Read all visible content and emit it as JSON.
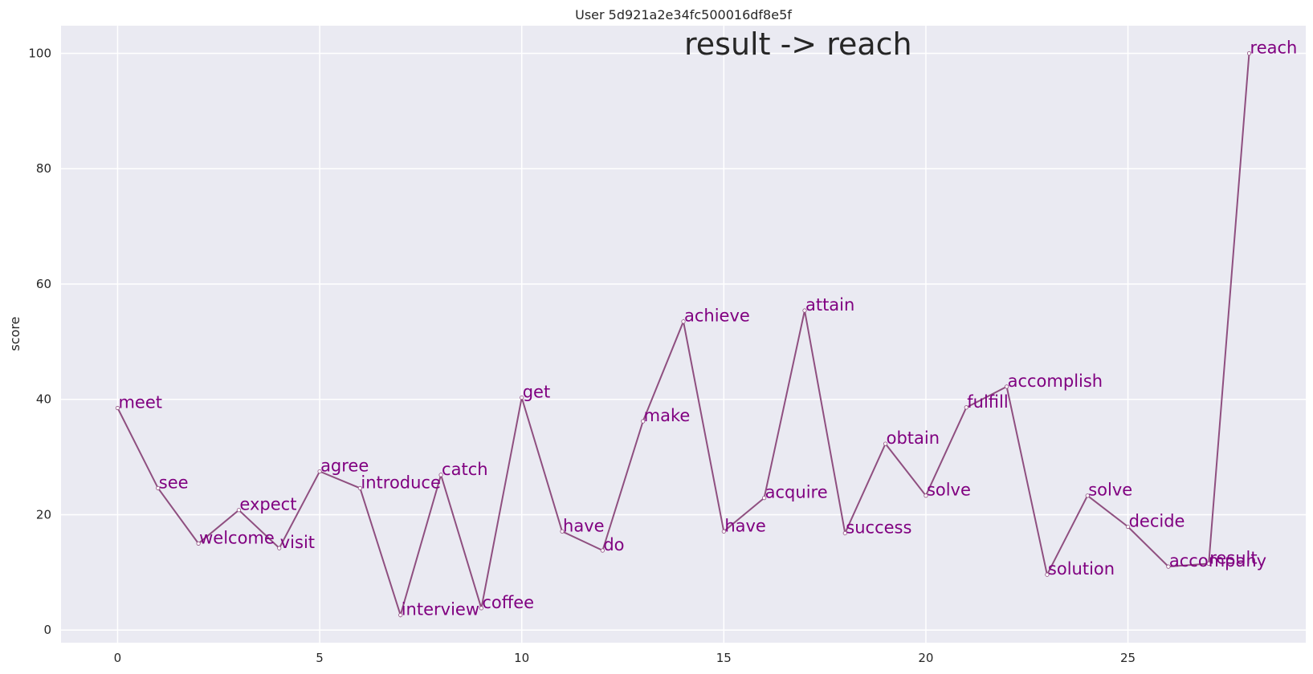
{
  "chart_data": {
    "type": "line",
    "title": "User 5d921a2e34fc500016df8e5f",
    "annotation": "result -> reach",
    "xlabel": "",
    "ylabel": "score",
    "xlim": [
      -1.4,
      29.4
    ],
    "ylim": [
      -2.2,
      104.8
    ],
    "xticks": [
      0,
      5,
      10,
      15,
      20,
      25
    ],
    "yticks": [
      0,
      20,
      40,
      60,
      80,
      100
    ],
    "grid": true,
    "line_color": "#8f4f80",
    "label_color": "#800080",
    "background": "#eaeaf2",
    "points": [
      {
        "x": 0,
        "y": 38.5,
        "label": "meet"
      },
      {
        "x": 1,
        "y": 24.6,
        "label": "see"
      },
      {
        "x": 2,
        "y": 15.0,
        "label": "welcome"
      },
      {
        "x": 3,
        "y": 20.8,
        "label": "expect"
      },
      {
        "x": 4,
        "y": 14.2,
        "label": "visit"
      },
      {
        "x": 5,
        "y": 27.5,
        "label": "agree"
      },
      {
        "x": 6,
        "y": 24.6,
        "label": "introduce"
      },
      {
        "x": 7,
        "y": 2.6,
        "label": "interview"
      },
      {
        "x": 8,
        "y": 26.9,
        "label": "catch"
      },
      {
        "x": 9,
        "y": 3.8,
        "label": "coffee"
      },
      {
        "x": 10,
        "y": 40.3,
        "label": "get"
      },
      {
        "x": 11,
        "y": 17.1,
        "label": "have"
      },
      {
        "x": 12,
        "y": 13.8,
        "label": "do"
      },
      {
        "x": 13,
        "y": 36.2,
        "label": "make"
      },
      {
        "x": 14,
        "y": 53.5,
        "label": "achieve"
      },
      {
        "x": 15,
        "y": 17.1,
        "label": "have"
      },
      {
        "x": 16,
        "y": 22.9,
        "label": "acquire"
      },
      {
        "x": 17,
        "y": 55.4,
        "label": "attain"
      },
      {
        "x": 18,
        "y": 16.8,
        "label": "success"
      },
      {
        "x": 19,
        "y": 32.3,
        "label": "obtain"
      },
      {
        "x": 20,
        "y": 23.3,
        "label": "solve"
      },
      {
        "x": 21,
        "y": 38.6,
        "label": "fulfill"
      },
      {
        "x": 22,
        "y": 42.2,
        "label": "accomplish"
      },
      {
        "x": 23,
        "y": 9.6,
        "label": "solution"
      },
      {
        "x": 24,
        "y": 23.3,
        "label": "solve"
      },
      {
        "x": 25,
        "y": 17.9,
        "label": "decide"
      },
      {
        "x": 26,
        "y": 11.0,
        "label": "accompany"
      },
      {
        "x": 27,
        "y": 11.5,
        "label": "result"
      },
      {
        "x": 28,
        "y": 100.0,
        "label": "reach"
      }
    ]
  }
}
